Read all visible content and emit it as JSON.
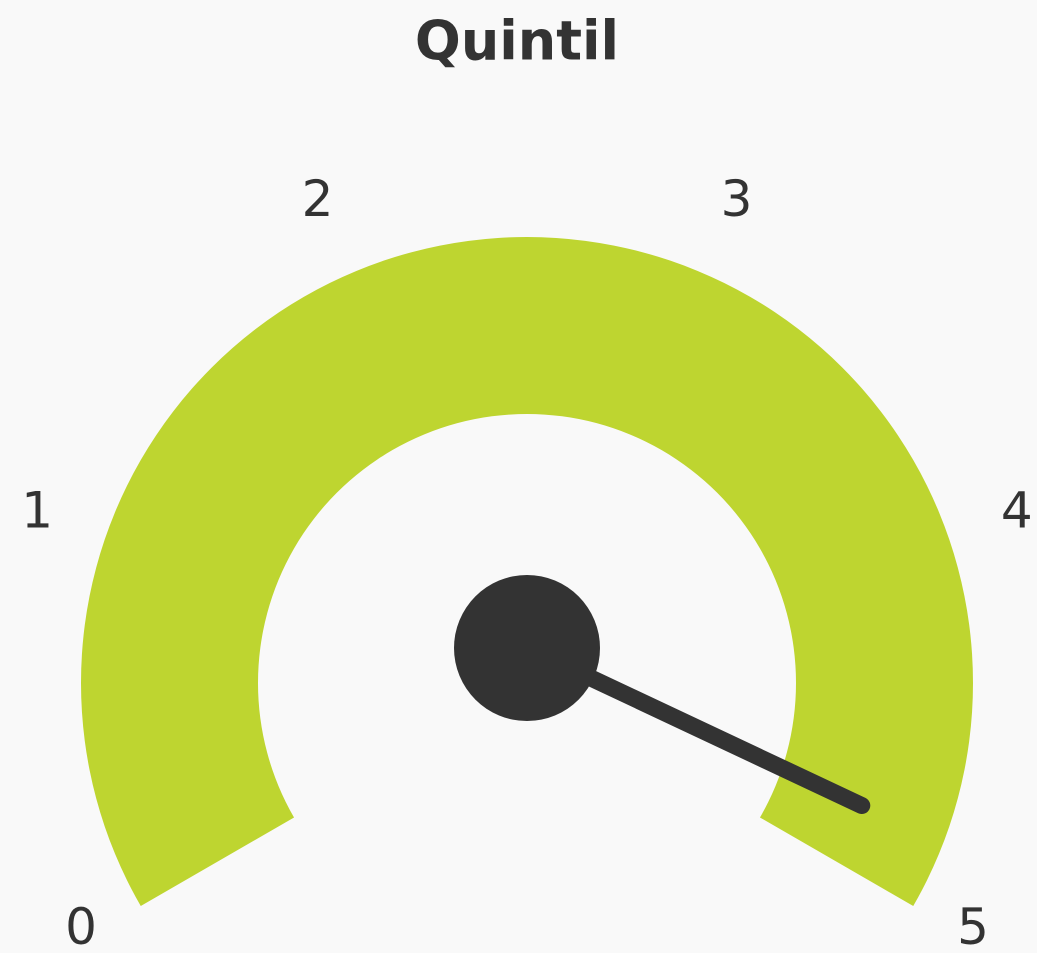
{
  "chart_data": {
    "type": "gauge",
    "title": "Quintil",
    "value": 4.9,
    "ylim": [
      0,
      5
    ],
    "yticks": [
      0,
      1,
      2,
      3,
      4,
      5
    ],
    "color": "#bed530",
    "needle_color": "#333333"
  }
}
